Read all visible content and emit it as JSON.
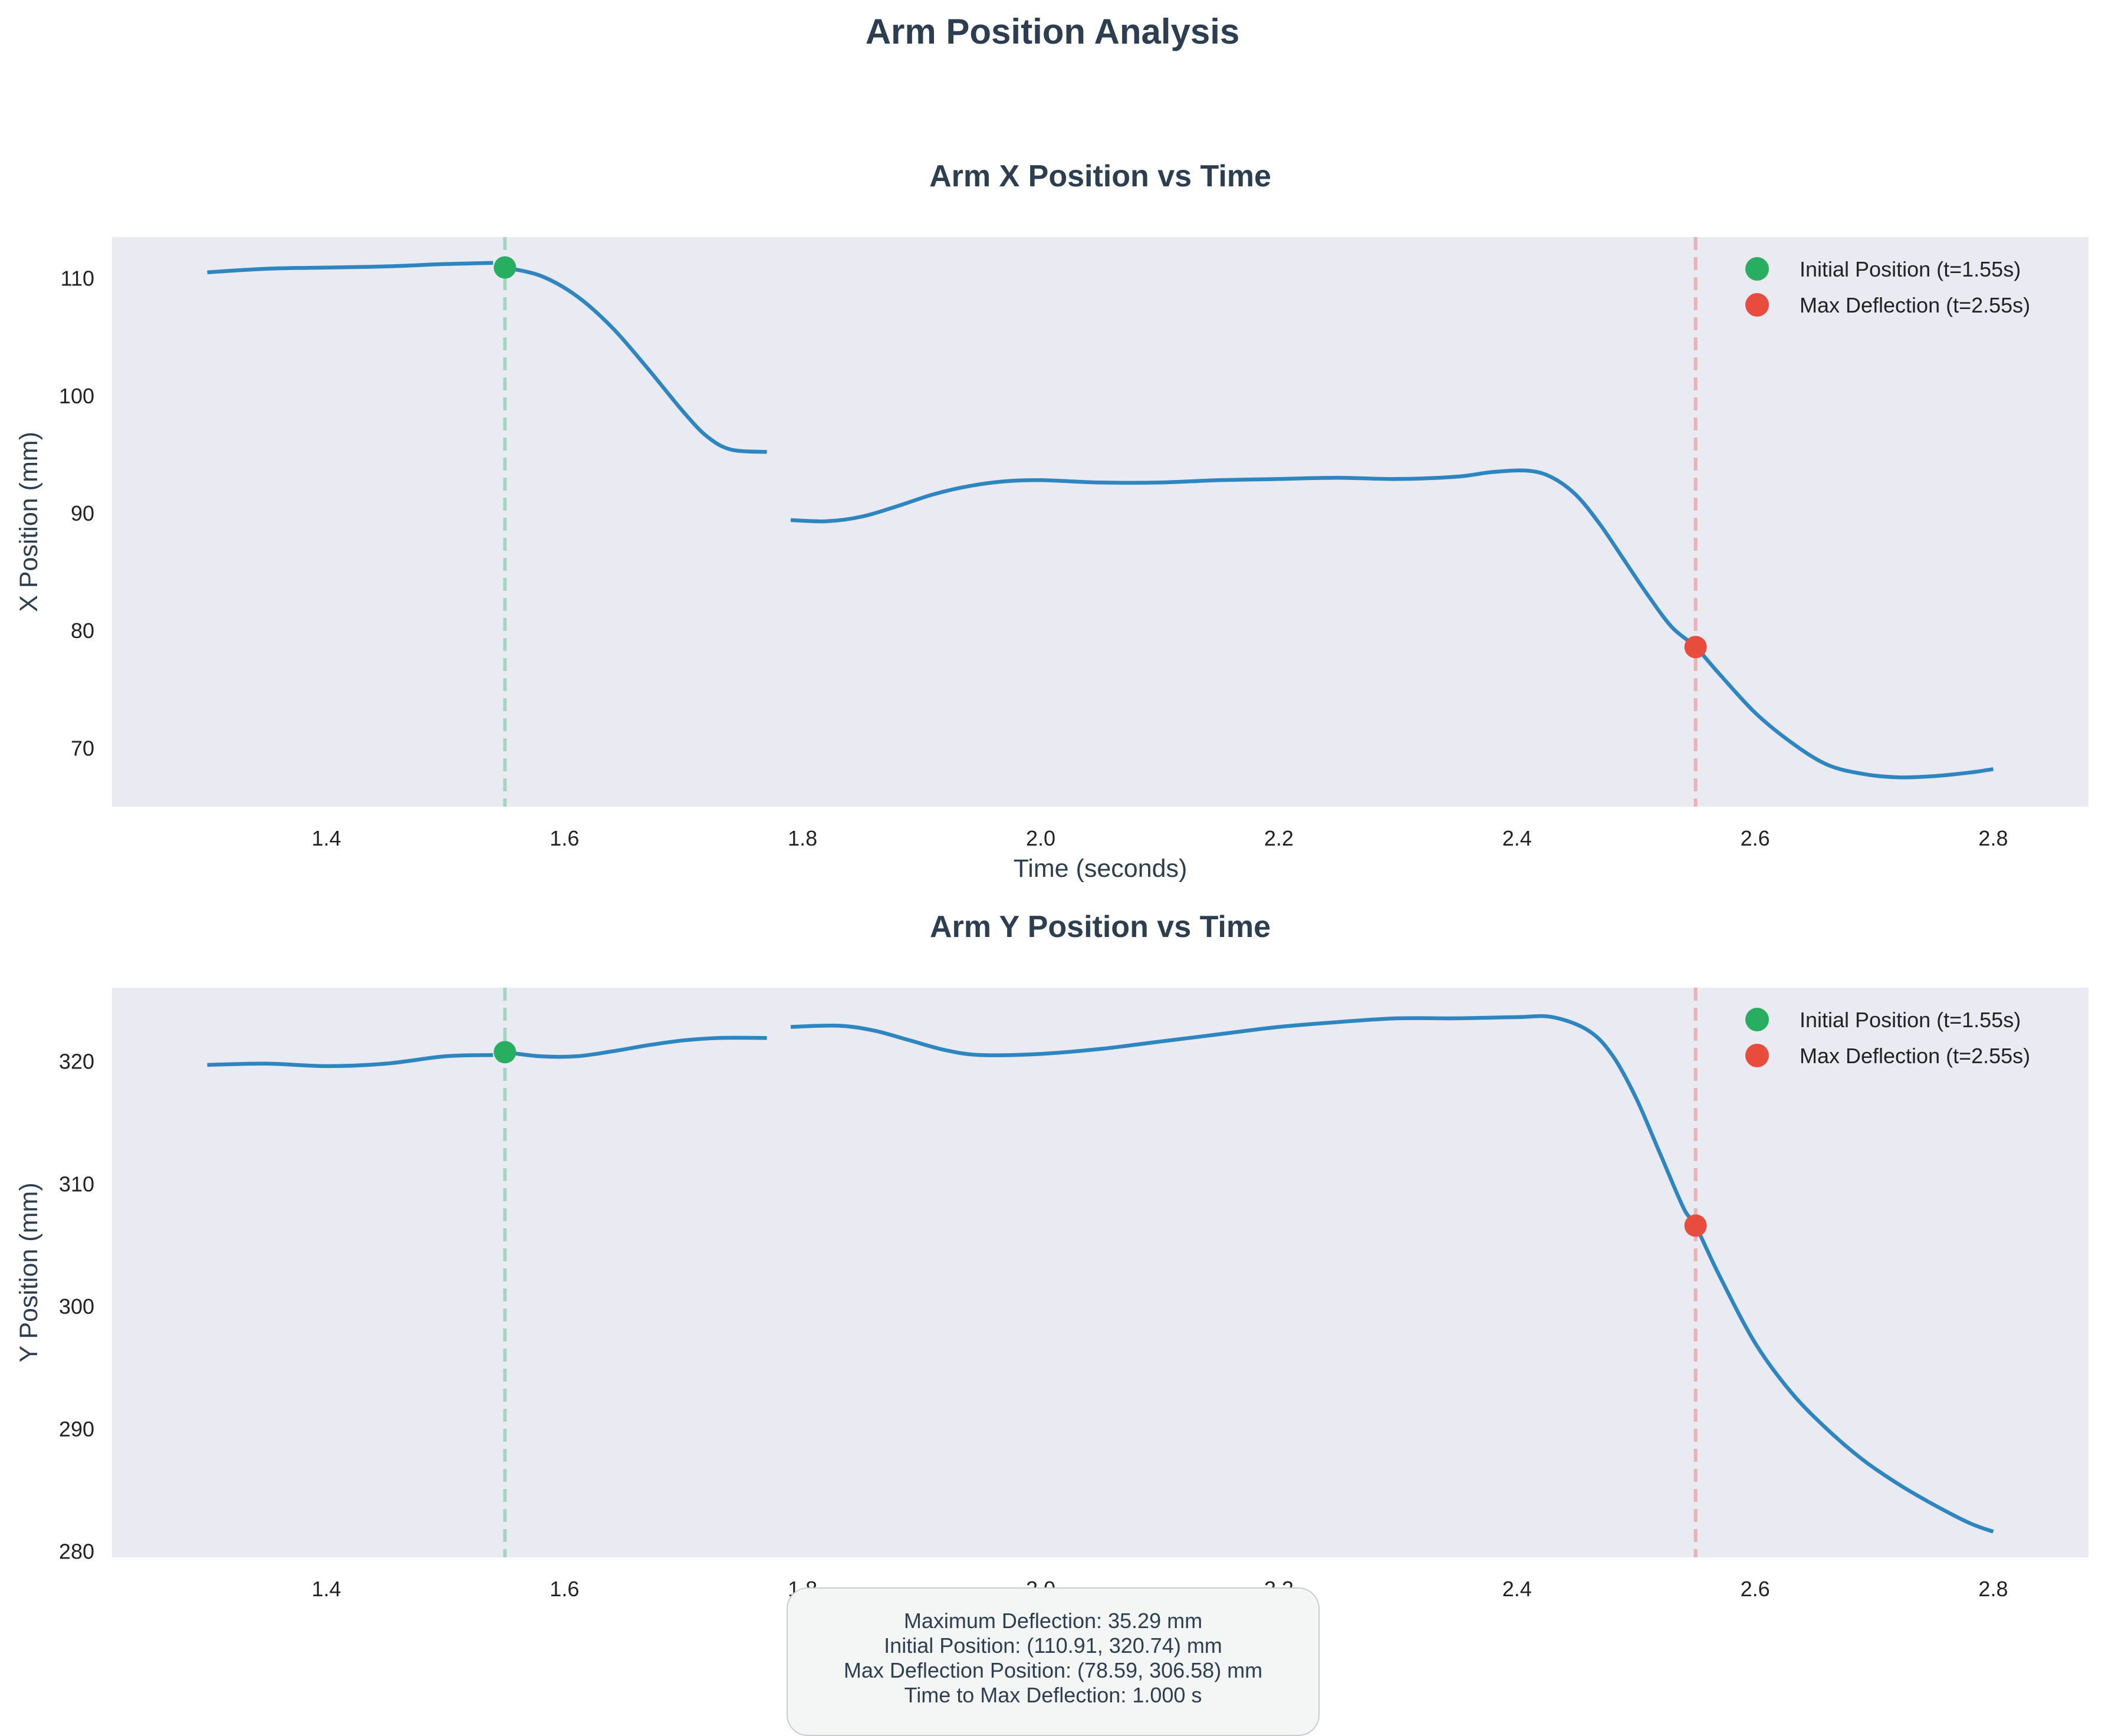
{
  "title": "Arm Position Analysis",
  "colors": {
    "line": "#2e86c1",
    "initial": "#27ae60",
    "max": "#e74c3c",
    "panel_bg": "#eaeaf2",
    "text": "#2c3e50"
  },
  "chart_data": [
    {
      "type": "line",
      "title": "Arm X Position vs Time",
      "xlabel": "Time (seconds)",
      "ylabel": "X Position (mm)",
      "xlim": [
        1.22,
        2.88
      ],
      "ylim": [
        65,
        113.5
      ],
      "xticks": [
        "1.4",
        "1.6",
        "1.8",
        "2.0",
        "2.2",
        "2.4",
        "2.6",
        "2.8"
      ],
      "yticks": [
        "70",
        "80",
        "90",
        "100",
        "110"
      ],
      "grid": false,
      "legend_position": "top-right",
      "legend": [
        "Initial Position (t=1.55s)",
        "Max Deflection (t=2.55s)"
      ],
      "segments": [
        {
          "x": [
            1.3,
            1.35,
            1.4,
            1.45,
            1.5,
            1.54
          ],
          "y": [
            110.5,
            110.8,
            110.9,
            111.0,
            111.2,
            111.3
          ]
        },
        {
          "x": [
            1.55,
            1.58,
            1.61,
            1.64,
            1.67,
            1.7,
            1.72,
            1.74,
            1.77
          ],
          "y": [
            110.9,
            110.2,
            108.5,
            105.8,
            102.3,
            98.6,
            96.5,
            95.4,
            95.2
          ]
        },
        {
          "x": [
            1.79,
            1.82,
            1.85,
            1.88,
            1.91,
            1.94,
            1.97,
            2.0,
            2.05,
            2.1,
            2.15,
            2.2,
            2.25,
            2.3,
            2.35,
            2.38,
            2.41,
            2.43,
            2.45,
            2.47,
            2.49,
            2.51,
            2.53,
            2.55,
            2.57,
            2.6,
            2.63,
            2.66,
            2.69,
            2.72,
            2.75,
            2.78,
            2.8
          ],
          "y": [
            89.4,
            89.3,
            89.7,
            90.6,
            91.6,
            92.3,
            92.7,
            92.8,
            92.6,
            92.6,
            92.8,
            92.9,
            93.0,
            92.9,
            93.1,
            93.5,
            93.6,
            93.0,
            91.5,
            89.0,
            86.0,
            83.0,
            80.3,
            78.59,
            76.3,
            73.0,
            70.5,
            68.6,
            67.8,
            67.5,
            67.6,
            67.9,
            68.2
          ]
        }
      ],
      "initial_point": {
        "x": 1.55,
        "y": 110.91
      },
      "max_point": {
        "x": 2.55,
        "y": 78.59
      },
      "vlines": [
        1.55,
        2.55
      ]
    },
    {
      "type": "line",
      "title": "Arm Y Position vs Time",
      "ylabel": "Y Position (mm)",
      "xlim": [
        1.22,
        2.88
      ],
      "ylim": [
        279.5,
        326
      ],
      "xticks": [
        "1.4",
        "1.6",
        "1.8",
        "2.0",
        "2.2",
        "2.4",
        "2.6",
        "2.8"
      ],
      "yticks": [
        "280",
        "290",
        "300",
        "310",
        "320"
      ],
      "grid": false,
      "legend_position": "top-right",
      "legend": [
        "Initial Position (t=1.55s)",
        "Max Deflection (t=2.55s)"
      ],
      "segments": [
        {
          "x": [
            1.3,
            1.35,
            1.4,
            1.45,
            1.5,
            1.54
          ],
          "y": [
            319.7,
            319.8,
            319.6,
            319.8,
            320.4,
            320.5
          ]
        },
        {
          "x": [
            1.55,
            1.58,
            1.61,
            1.64,
            1.67,
            1.7,
            1.73,
            1.77
          ],
          "y": [
            320.74,
            320.4,
            320.4,
            320.8,
            321.3,
            321.7,
            321.9,
            321.9
          ]
        },
        {
          "x": [
            1.79,
            1.83,
            1.86,
            1.89,
            1.92,
            1.95,
            2.0,
            2.05,
            2.1,
            2.15,
            2.2,
            2.25,
            2.3,
            2.35,
            2.4,
            2.43,
            2.46,
            2.48,
            2.5,
            2.52,
            2.54,
            2.55,
            2.57,
            2.6,
            2.63,
            2.66,
            2.69,
            2.72,
            2.75,
            2.78,
            2.8
          ],
          "y": [
            322.8,
            322.9,
            322.5,
            321.7,
            320.9,
            320.5,
            320.6,
            321.0,
            321.6,
            322.2,
            322.8,
            323.2,
            323.5,
            323.5,
            323.6,
            323.6,
            322.5,
            320.5,
            317.0,
            312.5,
            308.0,
            306.58,
            302.5,
            297.0,
            293.0,
            290.0,
            287.5,
            285.5,
            283.8,
            282.3,
            281.6
          ]
        }
      ],
      "initial_point": {
        "x": 1.55,
        "y": 320.74
      },
      "max_point": {
        "x": 2.55,
        "y": 306.58
      },
      "vlines": [
        1.55,
        2.55
      ]
    }
  ],
  "summary": {
    "line1": "Maximum Deflection: 35.29 mm",
    "line2": "Initial Position: (110.91, 320.74) mm",
    "line3": "Max Deflection Position: (78.59, 306.58) mm",
    "line4": "Time to Max Deflection: 1.000 s"
  }
}
